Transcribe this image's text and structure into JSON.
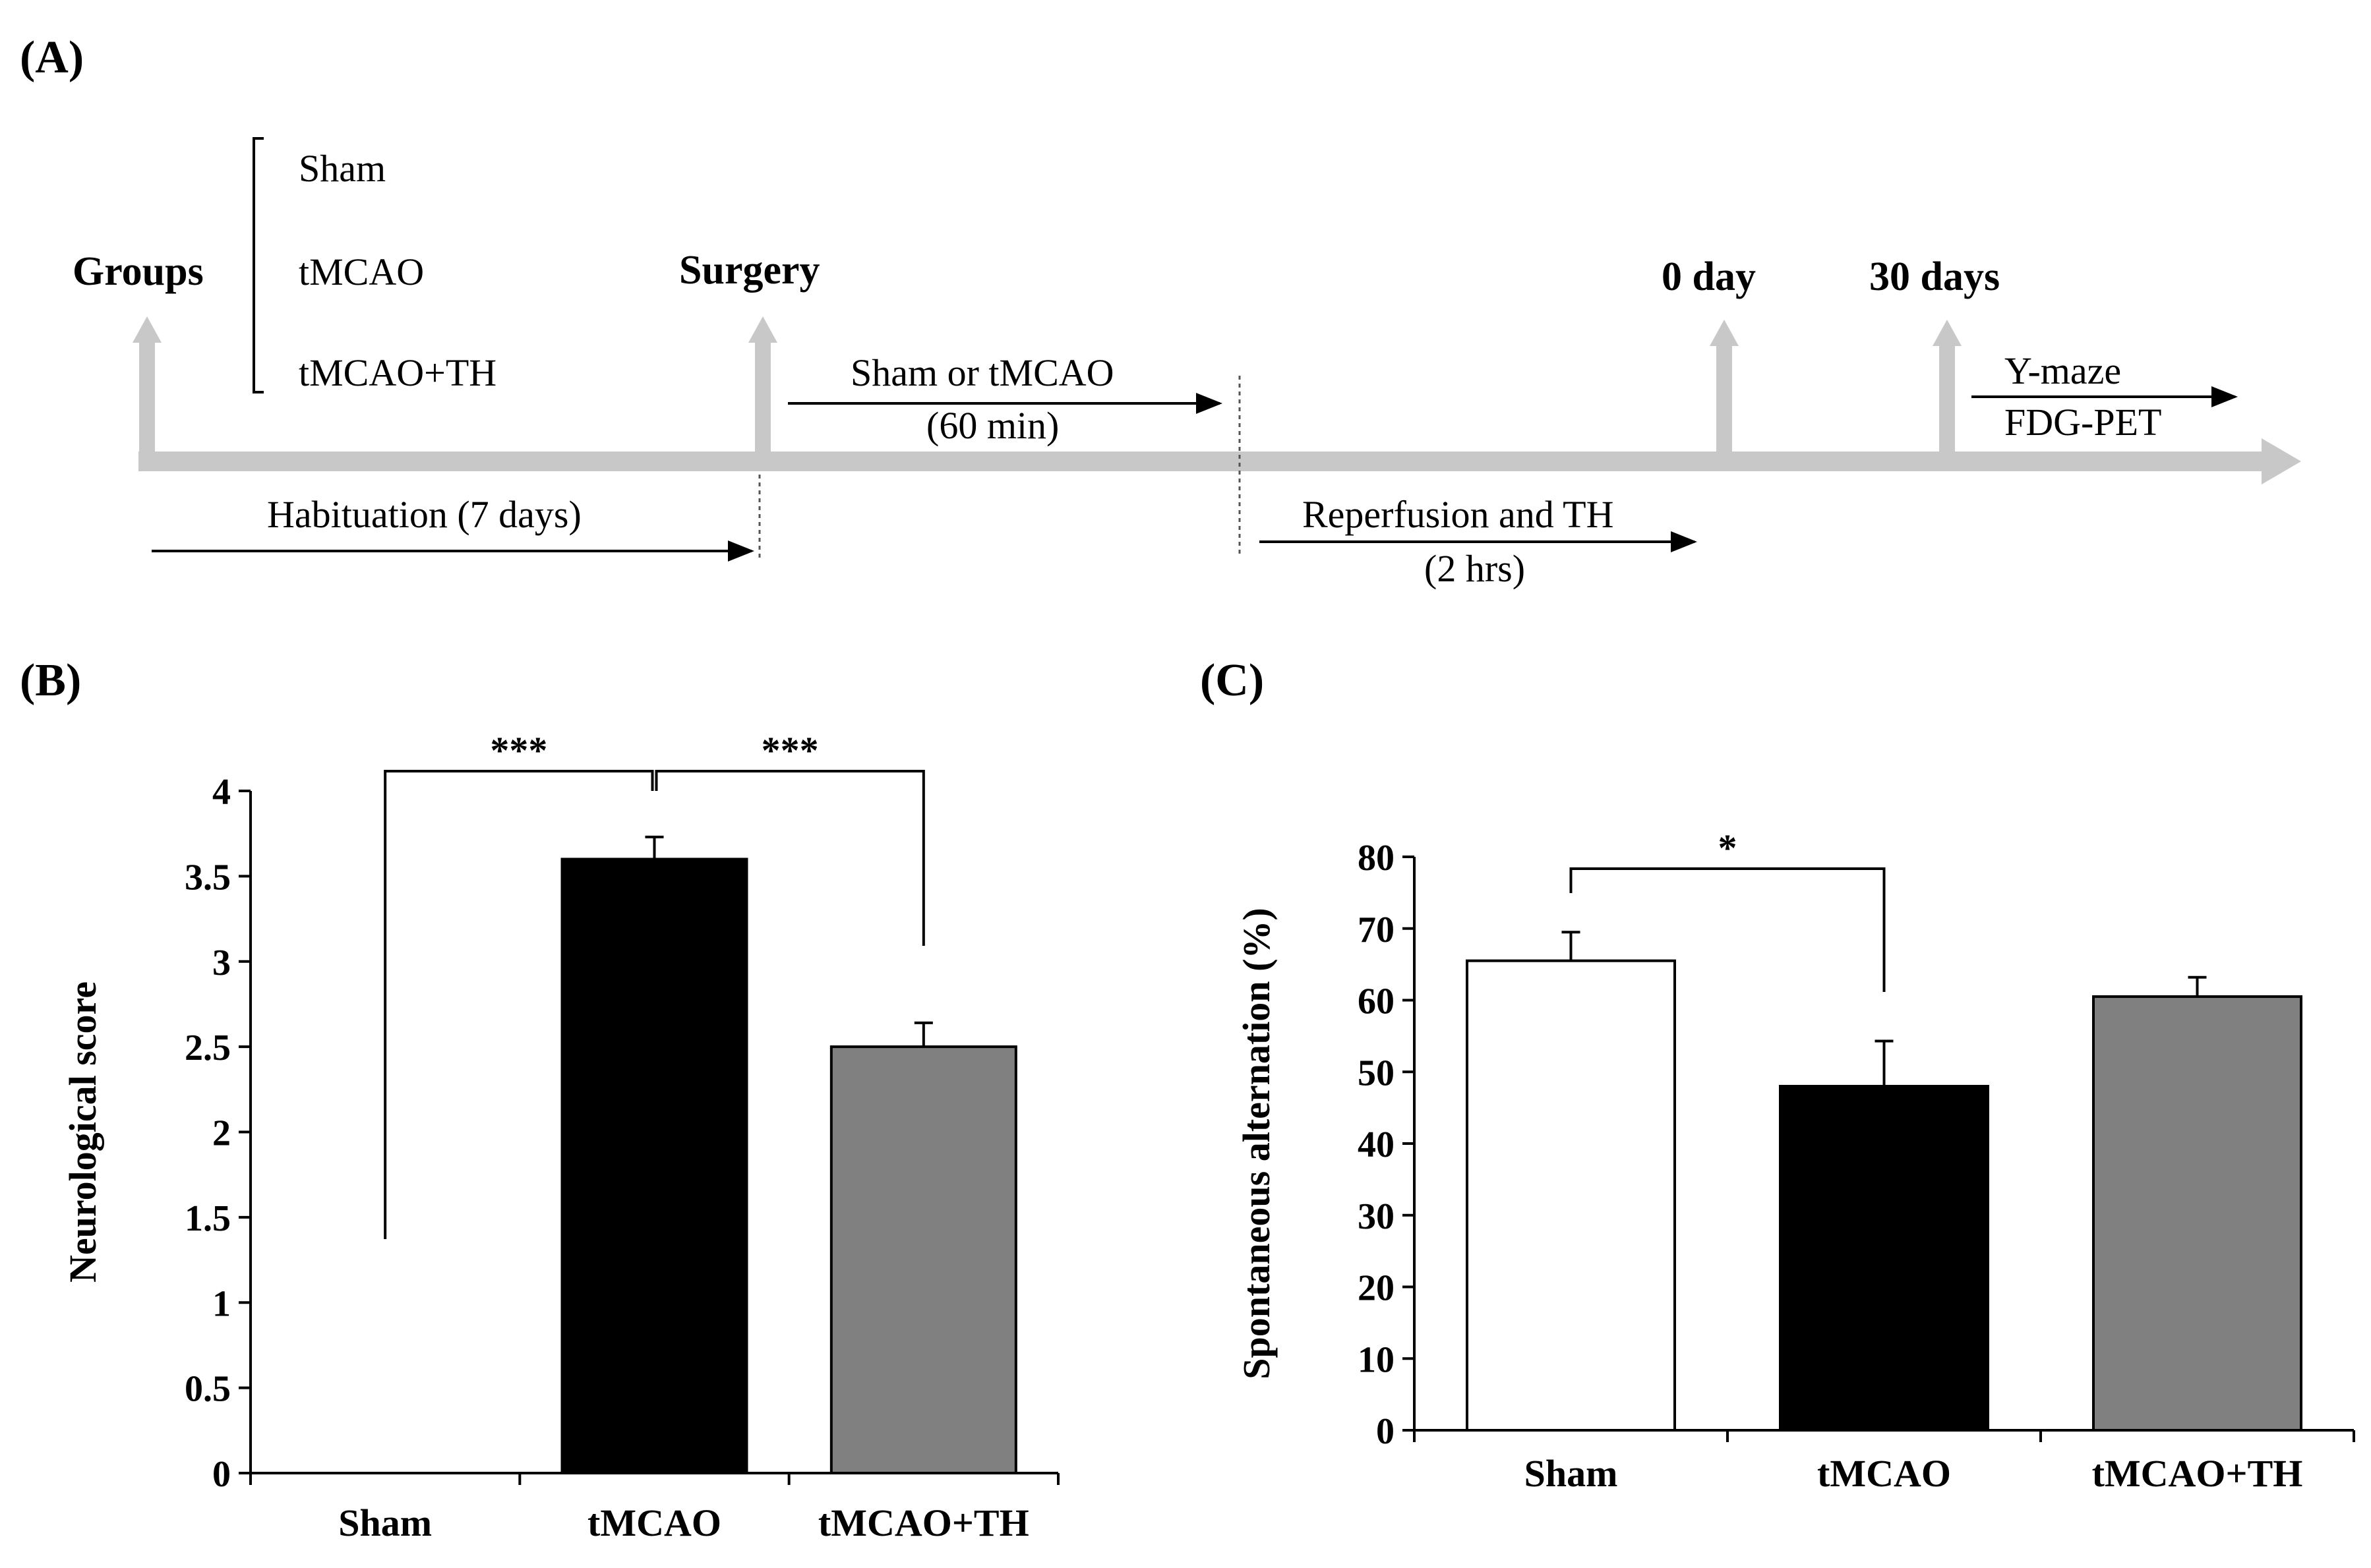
{
  "panels": {
    "a": "(A)",
    "b": "(B)",
    "c": "(C)"
  },
  "timeline": {
    "groups_label": "Groups",
    "groups": [
      "Sham",
      "tMCAO",
      "tMCAO+TH"
    ],
    "surgery_label": "Surgery",
    "day0_label": "0 day",
    "day30_label": "30 days",
    "sham_or_tmcao": "Sham or tMCAO",
    "sham_duration": "(60 min)",
    "habituation": "Habituation  (7 days)",
    "reperfusion": "Reperfusion  and  TH",
    "reperfusion_duration": "(2 hrs)",
    "ymaze": "Y-maze",
    "fdgpet": "FDG-PET"
  },
  "chart_data": [
    {
      "type": "bar",
      "title": "",
      "xlabel": "",
      "ylabel": "Neurological  score",
      "categories": [
        "Sham",
        "tMCAO",
        "tMCAO+TH"
      ],
      "values": [
        0,
        3.6,
        2.5
      ],
      "errors": [
        0,
        0.13,
        0.14
      ],
      "colors": [
        "#ffffff",
        "#000000",
        "#808080"
      ],
      "ylim": [
        0,
        4
      ],
      "yticks": [
        "0",
        "0.5",
        "1",
        "1.5",
        "2",
        "2.5",
        "3",
        "3.5",
        "4"
      ],
      "significance": [
        {
          "from": "Sham",
          "to": "tMCAO",
          "label": "***"
        },
        {
          "from": "tMCAO",
          "to": "tMCAO+TH",
          "label": "***"
        }
      ]
    },
    {
      "type": "bar",
      "title": "",
      "xlabel": "",
      "ylabel": "Spontaneous  alternation  (%)",
      "categories": [
        "Sham",
        "tMCAO",
        "tMCAO+TH"
      ],
      "values": [
        65.5,
        48,
        60.5
      ],
      "errors": [
        4,
        6.3,
        2.7
      ],
      "colors": [
        "#ffffff",
        "#000000",
        "#808080"
      ],
      "ylim": [
        0,
        80
      ],
      "yticks": [
        "0",
        "10",
        "20",
        "30",
        "40",
        "50",
        "60",
        "70",
        "80"
      ],
      "significance": [
        {
          "from": "Sham",
          "to": "tMCAO",
          "label": "*"
        }
      ]
    }
  ]
}
